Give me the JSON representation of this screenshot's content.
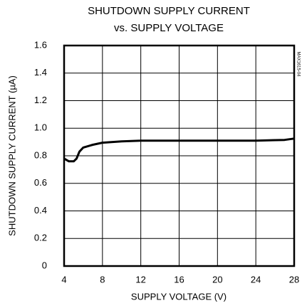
{
  "chart_data": {
    "type": "line",
    "title": [
      "SHUTDOWN SUPPLY CURRENT",
      "vs. SUPPLY VOLTAGE"
    ],
    "xlabel": "SUPPLY VOLTAGE (V)",
    "ylabel": "SHUTDOWN SUPPLY CURRENT (µA)",
    "annotation": "MAX1615-04",
    "x": [
      4,
      4.5,
      5,
      5.3,
      5.6,
      6,
      7,
      8,
      10,
      12,
      16,
      20,
      24,
      27,
      28
    ],
    "values": [
      0.78,
      0.76,
      0.76,
      0.78,
      0.83,
      0.86,
      0.88,
      0.895,
      0.905,
      0.91,
      0.91,
      0.91,
      0.91,
      0.915,
      0.925
    ],
    "color": "#000000",
    "xlim": [
      4,
      28
    ],
    "xticks": [
      4,
      8,
      12,
      16,
      20,
      24,
      28
    ],
    "ylim": [
      0,
      1.6
    ],
    "yticks": [
      0,
      0.2,
      0.4,
      0.6,
      0.8,
      {
        "value": 1,
        "label": "1.0"
      },
      1.2,
      1.4,
      1.6
    ],
    "grid": true
  }
}
